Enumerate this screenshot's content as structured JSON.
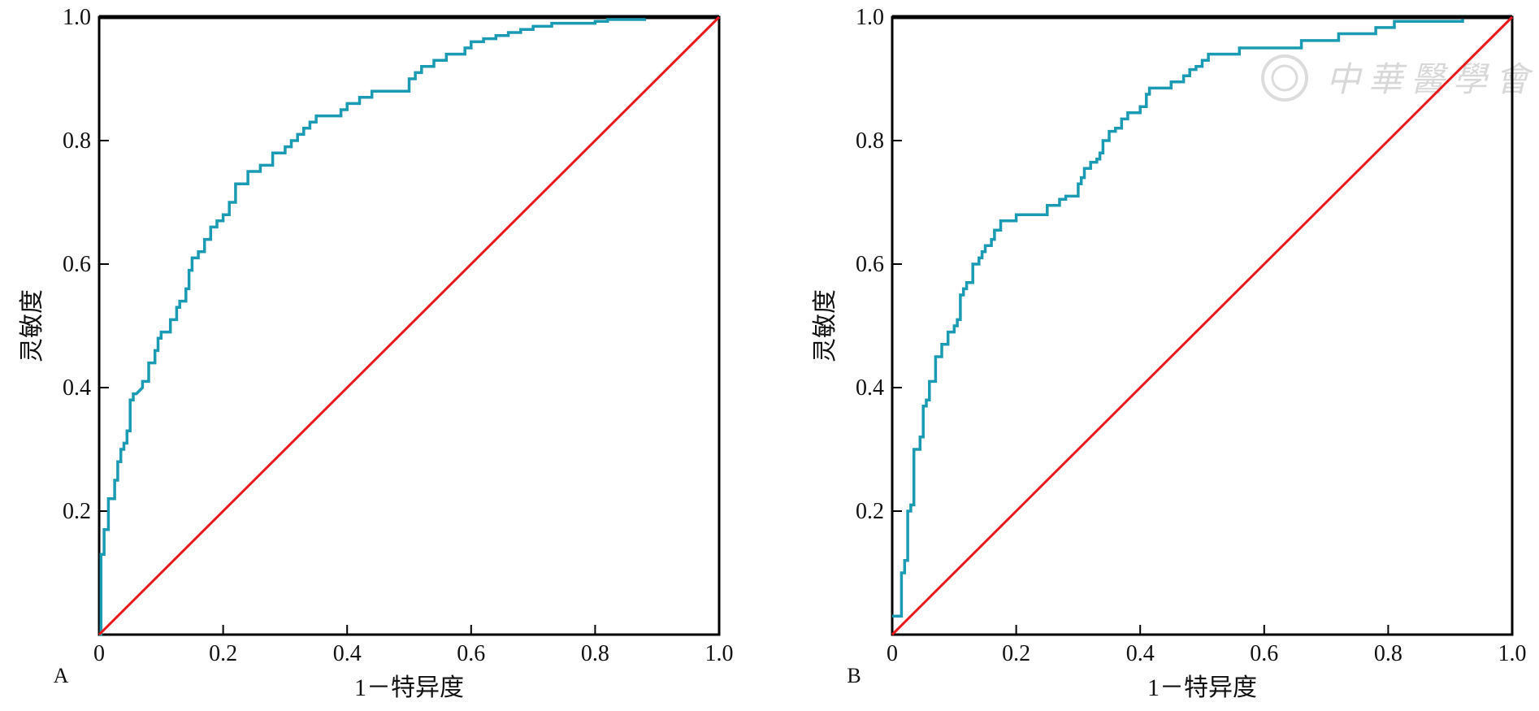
{
  "watermark": {
    "text": "中華醫學會"
  },
  "colors": {
    "roc": "#1a9bb3",
    "reference": "#e8191c",
    "frame": "#000000"
  },
  "chart_data": [
    {
      "type": "line",
      "panel_label": "A",
      "xlabel": "1－特异度",
      "ylabel": "灵敏度",
      "xlim": [
        0,
        1
      ],
      "ylim": [
        0,
        1
      ],
      "x_ticks": [
        0,
        0.2,
        0.4,
        0.6,
        0.8,
        1.0
      ],
      "x_tick_labels": [
        "0",
        "0.2",
        "0.4",
        "0.6",
        "0.8",
        "1.0"
      ],
      "y_ticks": [
        0.2,
        0.4,
        0.6,
        0.8,
        1.0
      ],
      "y_tick_labels": [
        "0.2",
        "0.4",
        "0.6",
        "0.8",
        "1.0"
      ],
      "grid": false,
      "series": [
        {
          "role": "roc",
          "x": [
            0,
            0.003,
            0.003,
            0.008,
            0.008,
            0.015,
            0.015,
            0.025,
            0.025,
            0.03,
            0.03,
            0.035,
            0.035,
            0.04,
            0.04,
            0.045,
            0.045,
            0.05,
            0.05,
            0.055,
            0.055,
            0.06,
            0.07,
            0.07,
            0.08,
            0.08,
            0.09,
            0.09,
            0.095,
            0.095,
            0.1,
            0.1,
            0.115,
            0.115,
            0.125,
            0.125,
            0.13,
            0.13,
            0.14,
            0.14,
            0.145,
            0.145,
            0.15,
            0.15,
            0.16,
            0.16,
            0.17,
            0.17,
            0.18,
            0.18,
            0.19,
            0.19,
            0.2,
            0.2,
            0.21,
            0.21,
            0.22,
            0.22,
            0.24,
            0.24,
            0.26,
            0.26,
            0.28,
            0.28,
            0.3,
            0.3,
            0.31,
            0.31,
            0.32,
            0.32,
            0.33,
            0.33,
            0.34,
            0.34,
            0.35,
            0.35,
            0.39,
            0.39,
            0.4,
            0.4,
            0.42,
            0.42,
            0.44,
            0.44,
            0.46,
            0.46,
            0.5,
            0.5,
            0.51,
            0.51,
            0.52,
            0.52,
            0.54,
            0.54,
            0.56,
            0.56,
            0.59,
            0.59,
            0.6,
            0.6,
            0.62,
            0.62,
            0.64,
            0.64,
            0.66,
            0.66,
            0.68,
            0.68,
            0.7,
            0.7,
            0.73,
            0.73,
            0.8,
            0.8,
            0.82,
            0.82,
            0.88,
            0.88
          ],
          "y": [
            0,
            0,
            0.13,
            0.13,
            0.17,
            0.17,
            0.22,
            0.22,
            0.25,
            0.25,
            0.28,
            0.28,
            0.3,
            0.3,
            0.31,
            0.31,
            0.33,
            0.33,
            0.38,
            0.38,
            0.39,
            0.39,
            0.4,
            0.41,
            0.41,
            0.44,
            0.44,
            0.46,
            0.46,
            0.48,
            0.48,
            0.49,
            0.49,
            0.51,
            0.51,
            0.53,
            0.53,
            0.54,
            0.54,
            0.56,
            0.56,
            0.59,
            0.59,
            0.61,
            0.61,
            0.62,
            0.62,
            0.64,
            0.64,
            0.66,
            0.66,
            0.67,
            0.67,
            0.68,
            0.68,
            0.7,
            0.7,
            0.73,
            0.73,
            0.75,
            0.75,
            0.76,
            0.76,
            0.78,
            0.78,
            0.79,
            0.79,
            0.8,
            0.8,
            0.81,
            0.81,
            0.82,
            0.82,
            0.83,
            0.83,
            0.84,
            0.84,
            0.85,
            0.85,
            0.86,
            0.86,
            0.87,
            0.87,
            0.88,
            0.88,
            0.88,
            0.88,
            0.9,
            0.9,
            0.91,
            0.91,
            0.92,
            0.92,
            0.93,
            0.93,
            0.94,
            0.94,
            0.95,
            0.95,
            0.96,
            0.96,
            0.965,
            0.965,
            0.97,
            0.97,
            0.975,
            0.975,
            0.98,
            0.98,
            0.985,
            0.985,
            0.99,
            0.99,
            0.993,
            0.993,
            0.996,
            0.996,
            0.998
          ]
        },
        {
          "role": "reference",
          "x": [
            0,
            1
          ],
          "y": [
            0,
            1
          ]
        }
      ]
    },
    {
      "type": "line",
      "panel_label": "B",
      "xlabel": "1－特异度",
      "ylabel": "灵敏度",
      "xlim": [
        0,
        1
      ],
      "ylim": [
        0,
        1
      ],
      "x_ticks": [
        0,
        0.2,
        0.4,
        0.6,
        0.8,
        1.0
      ],
      "x_tick_labels": [
        "0",
        "0.2",
        "0.4",
        "0.6",
        "0.8",
        "1.0"
      ],
      "y_ticks": [
        0.2,
        0.4,
        0.6,
        0.8,
        1.0
      ],
      "y_tick_labels": [
        "0.2",
        "0.4",
        "0.6",
        "0.8",
        "1.0"
      ],
      "grid": false,
      "series": [
        {
          "role": "roc",
          "x": [
            0,
            0.015,
            0.015,
            0.02,
            0.02,
            0.025,
            0.025,
            0.03,
            0.03,
            0.035,
            0.035,
            0.045,
            0.045,
            0.05,
            0.05,
            0.055,
            0.055,
            0.06,
            0.06,
            0.07,
            0.07,
            0.08,
            0.08,
            0.09,
            0.09,
            0.1,
            0.1,
            0.105,
            0.105,
            0.11,
            0.11,
            0.115,
            0.115,
            0.12,
            0.12,
            0.13,
            0.13,
            0.14,
            0.14,
            0.145,
            0.145,
            0.15,
            0.15,
            0.16,
            0.16,
            0.165,
            0.165,
            0.175,
            0.175,
            0.2,
            0.2,
            0.25,
            0.25,
            0.27,
            0.27,
            0.28,
            0.28,
            0.3,
            0.3,
            0.305,
            0.305,
            0.31,
            0.31,
            0.32,
            0.32,
            0.33,
            0.33,
            0.335,
            0.335,
            0.34,
            0.34,
            0.35,
            0.35,
            0.36,
            0.36,
            0.37,
            0.37,
            0.38,
            0.38,
            0.4,
            0.4,
            0.41,
            0.41,
            0.415,
            0.415,
            0.45,
            0.45,
            0.47,
            0.47,
            0.48,
            0.48,
            0.49,
            0.49,
            0.5,
            0.5,
            0.51,
            0.51,
            0.56,
            0.56,
            0.66,
            0.66,
            0.72,
            0.72,
            0.78,
            0.78,
            0.81,
            0.81,
            0.92,
            0.92
          ],
          "y": [
            0.03,
            0.03,
            0.1,
            0.1,
            0.12,
            0.12,
            0.2,
            0.2,
            0.21,
            0.21,
            0.3,
            0.3,
            0.32,
            0.32,
            0.37,
            0.37,
            0.38,
            0.38,
            0.41,
            0.41,
            0.45,
            0.45,
            0.47,
            0.47,
            0.49,
            0.49,
            0.5,
            0.5,
            0.51,
            0.51,
            0.55,
            0.55,
            0.56,
            0.56,
            0.57,
            0.57,
            0.6,
            0.6,
            0.61,
            0.61,
            0.62,
            0.62,
            0.63,
            0.63,
            0.64,
            0.64,
            0.655,
            0.655,
            0.67,
            0.67,
            0.68,
            0.68,
            0.695,
            0.695,
            0.705,
            0.705,
            0.71,
            0.71,
            0.73,
            0.73,
            0.74,
            0.74,
            0.755,
            0.755,
            0.765,
            0.765,
            0.77,
            0.77,
            0.78,
            0.78,
            0.8,
            0.8,
            0.815,
            0.815,
            0.82,
            0.82,
            0.835,
            0.835,
            0.845,
            0.845,
            0.855,
            0.855,
            0.875,
            0.875,
            0.885,
            0.885,
            0.895,
            0.895,
            0.905,
            0.905,
            0.915,
            0.915,
            0.92,
            0.92,
            0.93,
            0.93,
            0.94,
            0.94,
            0.95,
            0.95,
            0.962,
            0.962,
            0.973,
            0.973,
            0.983,
            0.983,
            0.993,
            0.993,
            0.997
          ]
        },
        {
          "role": "reference",
          "x": [
            0,
            1
          ],
          "y": [
            0,
            1
          ]
        }
      ]
    }
  ]
}
